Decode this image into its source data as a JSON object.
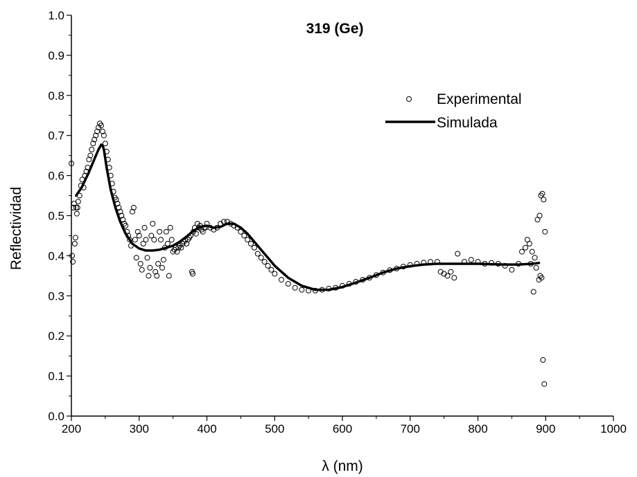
{
  "chart_data": {
    "type": "scatter",
    "title": "319 (Ge)",
    "xlabel": "λ (nm)",
    "ylabel": "Reflectividad",
    "xlim": [
      200,
      1000
    ],
    "ylim": [
      0.0,
      1.0
    ],
    "xticks": [
      200,
      300,
      400,
      500,
      600,
      700,
      800,
      900,
      1000
    ],
    "yticks": [
      0.0,
      0.1,
      0.2,
      0.3,
      0.4,
      0.5,
      0.6,
      0.7,
      0.8,
      0.9,
      1.0
    ],
    "xtick_labels": [
      "200",
      "300",
      "400",
      "500",
      "600",
      "700",
      "800",
      "900",
      "1000"
    ],
    "ytick_labels": [
      "0.0",
      "0.1",
      "0.2",
      "0.3",
      "0.4",
      "0.5",
      "0.6",
      "0.7",
      "0.8",
      "0.9",
      "1.0"
    ],
    "grid": false,
    "legend_position": "top-right",
    "series": [
      {
        "name": "Experimental",
        "style": "open-circle",
        "color": "#000000",
        "x": [
          200,
          201,
          202,
          203,
          204,
          205,
          206,
          207,
          208,
          209,
          210,
          212,
          214,
          216,
          218,
          220,
          222,
          224,
          226,
          228,
          230,
          232,
          234,
          236,
          238,
          240,
          242,
          244,
          246,
          248,
          250,
          252,
          254,
          256,
          258,
          260,
          262,
          264,
          266,
          268,
          270,
          272,
          274,
          276,
          278,
          280,
          282,
          284,
          286,
          288,
          290,
          292,
          294,
          296,
          298,
          300,
          302,
          304,
          306,
          308,
          310,
          312,
          314,
          316,
          318,
          320,
          322,
          324,
          326,
          328,
          330,
          332,
          334,
          336,
          338,
          340,
          342,
          344,
          346,
          348,
          350,
          352,
          354,
          356,
          358,
          360,
          362,
          364,
          366,
          368,
          370,
          372,
          374,
          376,
          378,
          379,
          380,
          382,
          384,
          386,
          388,
          390,
          392,
          394,
          396,
          398,
          400,
          405,
          410,
          415,
          420,
          425,
          430,
          435,
          440,
          445,
          450,
          455,
          460,
          465,
          470,
          475,
          480,
          485,
          490,
          495,
          500,
          510,
          520,
          530,
          540,
          550,
          560,
          570,
          580,
          590,
          600,
          610,
          620,
          630,
          640,
          650,
          660,
          670,
          680,
          690,
          700,
          710,
          720,
          730,
          740,
          745,
          750,
          755,
          760,
          765,
          770,
          780,
          790,
          800,
          810,
          820,
          830,
          840,
          850,
          860,
          865,
          870,
          873,
          876,
          878,
          880,
          882,
          884,
          886,
          888,
          890,
          891,
          892,
          893,
          894,
          895,
          896,
          897,
          898,
          899
        ],
        "y": [
          0.63,
          0.4,
          0.385,
          0.52,
          0.53,
          0.43,
          0.445,
          0.52,
          0.505,
          0.52,
          0.535,
          0.55,
          0.575,
          0.59,
          0.57,
          0.6,
          0.61,
          0.62,
          0.64,
          0.65,
          0.665,
          0.68,
          0.69,
          0.7,
          0.71,
          0.72,
          0.73,
          0.725,
          0.71,
          0.7,
          0.68,
          0.66,
          0.64,
          0.62,
          0.6,
          0.58,
          0.56,
          0.545,
          0.54,
          0.53,
          0.52,
          0.51,
          0.5,
          0.49,
          0.48,
          0.475,
          0.46,
          0.45,
          0.44,
          0.425,
          0.51,
          0.52,
          0.44,
          0.395,
          0.46,
          0.45,
          0.38,
          0.365,
          0.43,
          0.47,
          0.44,
          0.395,
          0.35,
          0.37,
          0.45,
          0.48,
          0.44,
          0.36,
          0.35,
          0.38,
          0.46,
          0.44,
          0.37,
          0.39,
          0.42,
          0.46,
          0.43,
          0.35,
          0.47,
          0.44,
          0.41,
          0.415,
          0.42,
          0.41,
          0.42,
          0.425,
          0.42,
          0.43,
          0.435,
          0.44,
          0.43,
          0.44,
          0.445,
          0.45,
          0.36,
          0.355,
          0.46,
          0.47,
          0.455,
          0.48,
          0.47,
          0.475,
          0.465,
          0.46,
          0.47,
          0.47,
          0.48,
          0.47,
          0.465,
          0.47,
          0.48,
          0.485,
          0.485,
          0.48,
          0.475,
          0.47,
          0.46,
          0.45,
          0.44,
          0.43,
          0.42,
          0.405,
          0.395,
          0.385,
          0.375,
          0.365,
          0.355,
          0.34,
          0.33,
          0.32,
          0.315,
          0.313,
          0.313,
          0.315,
          0.318,
          0.32,
          0.325,
          0.33,
          0.335,
          0.34,
          0.345,
          0.352,
          0.358,
          0.364,
          0.368,
          0.373,
          0.377,
          0.38,
          0.383,
          0.385,
          0.385,
          0.36,
          0.355,
          0.35,
          0.36,
          0.345,
          0.405,
          0.385,
          0.39,
          0.385,
          0.38,
          0.382,
          0.38,
          0.375,
          0.365,
          0.38,
          0.41,
          0.42,
          0.44,
          0.43,
          0.38,
          0.41,
          0.31,
          0.395,
          0.37,
          0.49,
          0.34,
          0.5,
          0.35,
          0.55,
          0.345,
          0.555,
          0.14,
          0.54,
          0.08,
          0.46
        ]
      },
      {
        "name": "Simulada",
        "style": "line",
        "color": "#000000",
        "x": [
          207,
          215,
          225,
          235,
          240,
          244,
          246,
          248,
          252,
          258,
          265,
          272,
          280,
          290,
          300,
          310,
          320,
          330,
          340,
          350,
          360,
          370,
          380,
          390,
          400,
          410,
          420,
          430,
          440,
          450,
          460,
          480,
          500,
          520,
          540,
          560,
          580,
          600,
          620,
          640,
          660,
          680,
          700,
          720,
          740,
          760,
          780,
          800,
          820,
          840,
          860,
          880,
          890
        ],
        "y": [
          0.55,
          0.57,
          0.605,
          0.645,
          0.665,
          0.677,
          0.675,
          0.665,
          0.62,
          0.565,
          0.52,
          0.485,
          0.455,
          0.43,
          0.418,
          0.413,
          0.413,
          0.415,
          0.42,
          0.425,
          0.435,
          0.448,
          0.462,
          0.472,
          0.475,
          0.47,
          0.472,
          0.48,
          0.48,
          0.47,
          0.455,
          0.415,
          0.375,
          0.345,
          0.325,
          0.315,
          0.315,
          0.322,
          0.333,
          0.345,
          0.358,
          0.368,
          0.374,
          0.378,
          0.38,
          0.38,
          0.38,
          0.38,
          0.379,
          0.378,
          0.378,
          0.38,
          0.382
        ]
      }
    ]
  }
}
